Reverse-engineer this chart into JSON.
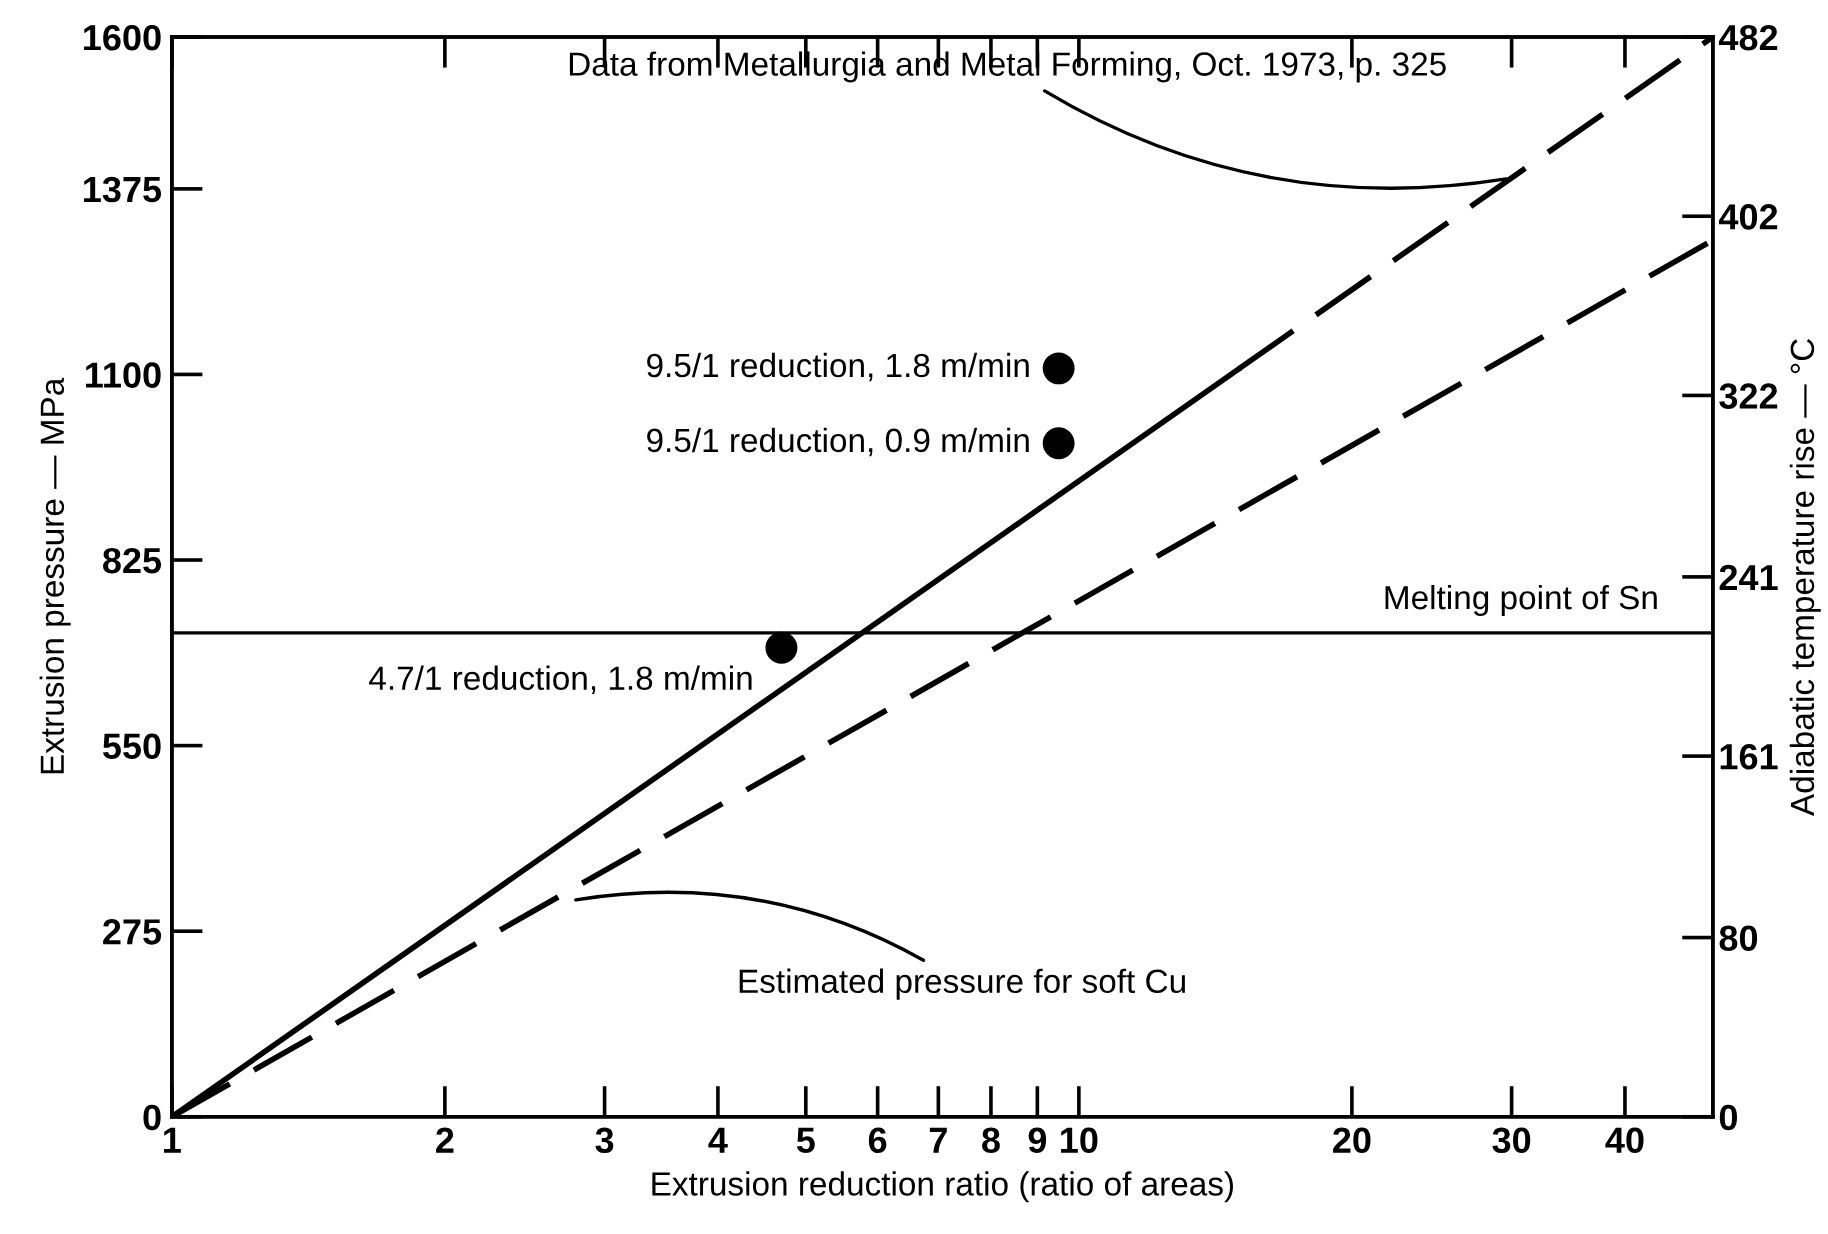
{
  "chart_data": {
    "type": "line",
    "xlabel": "Extrusion reduction ratio (ratio of areas)",
    "ylabel": "Extrusion pressure — MPa",
    "y2label": "Adiabatic temperature rise — °C",
    "log": "x",
    "grid": false,
    "legend": false,
    "xlim": [
      1,
      50
    ],
    "xticks": [
      1,
      2,
      3,
      4,
      5,
      6,
      7,
      8,
      9,
      10,
      20,
      30,
      40
    ],
    "ylim": [
      0,
      1600
    ],
    "yticks": [
      0,
      275,
      550,
      825,
      1100,
      1375,
      1600
    ],
    "y2lim": [
      0,
      482
    ],
    "y2ticks": [
      0,
      80,
      161,
      241,
      322,
      402,
      482
    ],
    "series": [
      {
        "color": "#000000",
        "line_style": "solid",
        "marker": "none",
        "x": [
          1,
          15
        ],
        "values": [
          0,
          1108
        ]
      },
      {
        "color": "#000000",
        "line_style": "dashed",
        "marker": "none",
        "x": [
          15,
          50
        ],
        "values": [
          1108,
          1600
        ]
      },
      {
        "color": "#000000",
        "line_style": "dashed",
        "marker": "none",
        "x": [
          1,
          50
        ],
        "values": [
          0,
          1299
        ]
      },
      {
        "type": "scatter",
        "color": "#000000",
        "marker": "circle",
        "x": [
          4.7,
          9.5,
          9.5
        ],
        "values": [
          695,
          1109,
          998
        ]
      }
    ],
    "ref_lines": [
      {
        "axis": "y",
        "value": 717,
        "label": "Melting point of Sn",
        "color": "#000000"
      }
    ],
    "annotations": [
      {
        "text": "Data from Metallurgia and Metal Forming, Oct. 1973, p. 325",
        "x": 30,
        "y": 1391
      },
      {
        "text": "Estimated pressure for soft Cu",
        "x": 2.75,
        "y": 320
      },
      {
        "text": "9.5/1 reduction, 1.8 m/min",
        "x": 9.5,
        "y": 1109
      },
      {
        "text": "9.5/1 reduction, 0.9 m/min",
        "x": 9.5,
        "y": 998
      },
      {
        "text": "4.7/1 reduction, 1.8 m/min",
        "x": 4.7,
        "y": 695
      }
    ]
  }
}
